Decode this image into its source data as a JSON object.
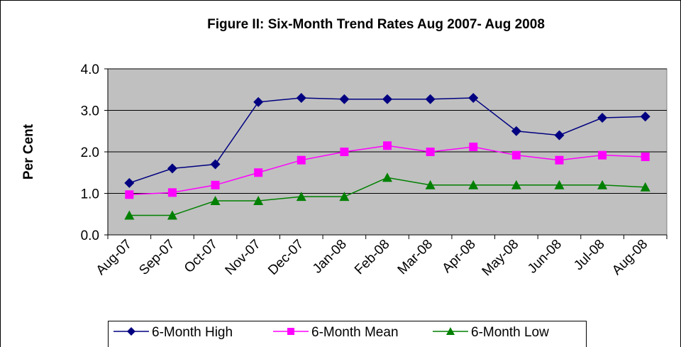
{
  "chart_data": {
    "type": "line",
    "title": "Figure II: Six-Month Trend Rates  Aug 2007- Aug 2008",
    "y_label": "Per Cent",
    "categories": [
      "Aug-07",
      "Sep-07",
      "Oct-07",
      "Nov-07",
      "Dec-07",
      "Jan-08",
      "Feb-08",
      "Mar-08",
      "Apr-08",
      "May-08",
      "Jun-08",
      "Jul-08",
      "Aug-08"
    ],
    "series": [
      {
        "name": "6-Month High",
        "color": "#000080",
        "marker": "diamond",
        "values": [
          1.25,
          1.6,
          1.7,
          3.2,
          3.3,
          3.27,
          3.27,
          3.27,
          3.3,
          2.5,
          2.4,
          2.82,
          2.85
        ]
      },
      {
        "name": "6-Month Mean",
        "color": "#ff00ff",
        "marker": "square",
        "values": [
          0.97,
          1.02,
          1.2,
          1.5,
          1.8,
          2.0,
          2.15,
          2.0,
          2.12,
          1.92,
          1.8,
          1.92,
          1.88
        ]
      },
      {
        "name": "6-Month Low",
        "color": "#008000",
        "marker": "triangle",
        "values": [
          0.47,
          0.47,
          0.82,
          0.82,
          0.92,
          0.92,
          1.38,
          1.2,
          1.2,
          1.2,
          1.2,
          1.2,
          1.15
        ]
      }
    ],
    "ylim": [
      0,
      4
    ],
    "yticks": [
      {
        "value": 0,
        "label": "0.0"
      },
      {
        "value": 1,
        "label": "1.0"
      },
      {
        "value": 2,
        "label": "2.0"
      },
      {
        "value": 3,
        "label": "3.0"
      },
      {
        "value": 4,
        "label": "4.0"
      }
    ],
    "grid": true,
    "legend": "bottom"
  }
}
